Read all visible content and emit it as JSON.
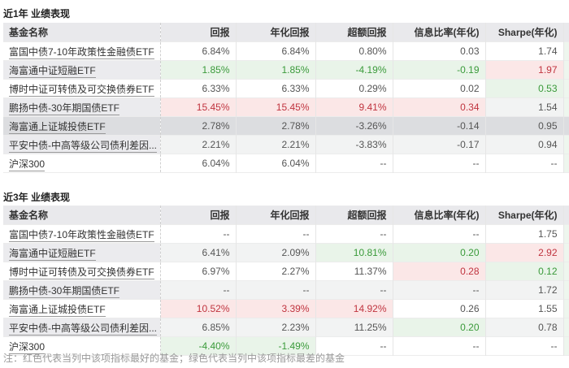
{
  "colors": {
    "best_text": "#c0343f",
    "best_bg": "#fbe7e7",
    "worst_text": "#3a9a3a",
    "worst_bg": "#e9f4e9",
    "header_bg": "#e9e9ec"
  },
  "columns": [
    "基金名称",
    "回报",
    "年化回报",
    "超额回报",
    "信息比率(年化)",
    "Sharpe(年化)"
  ],
  "one_year": {
    "title": "近1年 业绩表现",
    "rows": [
      {
        "name": "富国中债7-10年政策性金融债ETF",
        "cells": [
          "6.84%",
          "6.84%",
          "0.80%",
          "0.03",
          "1.74"
        ],
        "marks": [
          "",
          "",
          "",
          "",
          ""
        ]
      },
      {
        "name": "海富通中证短融ETF",
        "cells": [
          "1.85%",
          "1.85%",
          "-4.19%",
          "-0.19",
          "1.97"
        ],
        "marks": [
          "worst",
          "worst",
          "worst",
          "worst",
          "best"
        ]
      },
      {
        "name": "博时中证可转债及可交换债券ETF",
        "cells": [
          "6.33%",
          "6.33%",
          "0.29%",
          "0.02",
          "0.53"
        ],
        "marks": [
          "",
          "",
          "",
          "",
          "worst"
        ]
      },
      {
        "name": "鹏扬中债-30年期国债ETF",
        "cells": [
          "15.45%",
          "15.45%",
          "9.41%",
          "0.34",
          "1.54"
        ],
        "marks": [
          "best",
          "best",
          "best",
          "best",
          ""
        ]
      },
      {
        "name": "海富通上证城投债ETF",
        "cells": [
          "2.78%",
          "2.78%",
          "-3.26%",
          "-0.14",
          "0.95"
        ],
        "marks": [
          "",
          "",
          "",
          "",
          ""
        ],
        "hover": true
      },
      {
        "name": "平安中债-中高等级公司债利差因...",
        "cells": [
          "2.21%",
          "2.21%",
          "-3.83%",
          "-0.17",
          "0.94"
        ],
        "marks": [
          "",
          "",
          "",
          "",
          ""
        ]
      },
      {
        "name": "沪深300",
        "cells": [
          "6.04%",
          "6.04%",
          "--",
          "--",
          "--"
        ],
        "marks": [
          "",
          "",
          "",
          "",
          ""
        ]
      }
    ]
  },
  "three_year": {
    "title": "近3年 业绩表现",
    "rows": [
      {
        "name": "富国中债7-10年政策性金融债ETF",
        "cells": [
          "--",
          "--",
          "--",
          "--",
          "1.75"
        ],
        "marks": [
          "",
          "",
          "",
          "",
          ""
        ]
      },
      {
        "name": "海富通中证短融ETF",
        "cells": [
          "6.41%",
          "2.09%",
          "10.81%",
          "0.20",
          "2.92"
        ],
        "marks": [
          "",
          "",
          "worst",
          "worst",
          "best"
        ]
      },
      {
        "name": "博时中证可转债及可交换债券ETF",
        "cells": [
          "6.97%",
          "2.27%",
          "11.37%",
          "0.28",
          "0.12"
        ],
        "marks": [
          "",
          "",
          "",
          "best",
          "worst"
        ]
      },
      {
        "name": "鹏扬中债-30年期国债ETF",
        "cells": [
          "--",
          "--",
          "--",
          "--",
          "1.72"
        ],
        "marks": [
          "",
          "",
          "",
          "",
          ""
        ]
      },
      {
        "name": "海富通上证城投债ETF",
        "cells": [
          "10.52%",
          "3.39%",
          "14.92%",
          "0.26",
          "1.55"
        ],
        "marks": [
          "best",
          "best",
          "best",
          "",
          ""
        ]
      },
      {
        "name": "平安中债-中高等级公司债利差因...",
        "cells": [
          "6.85%",
          "2.23%",
          "11.25%",
          "0.20",
          "0.78"
        ],
        "marks": [
          "",
          "",
          "",
          "worst",
          ""
        ]
      },
      {
        "name": "沪深300",
        "cells": [
          "-4.40%",
          "-1.49%",
          "--",
          "--",
          "--"
        ],
        "marks": [
          "worst",
          "worst",
          "",
          "",
          ""
        ]
      }
    ]
  },
  "note": "注：红色代表当列中该项指标最好的基金；绿色代表当列中该项指标最差的基金"
}
